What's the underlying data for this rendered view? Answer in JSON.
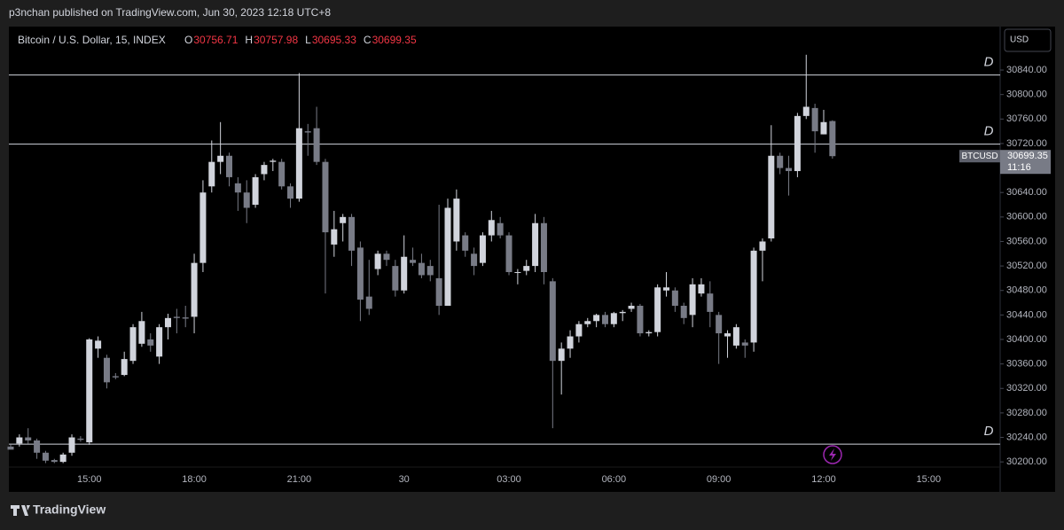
{
  "header": "p3nchan published on TradingView.com, Jun 30, 2023 12:18 UTC+8",
  "footer": "TradingView",
  "chart_data": {
    "type": "candlestick",
    "title": "Bitcoin / U.S. Dollar, 15, INDEX",
    "ohlc_labels": [
      "O",
      "H",
      "L",
      "C"
    ],
    "currency": "USD",
    "symbol_tag": "BTCUSD",
    "countdown": "11:16",
    "up_color": "#d1d4dc",
    "down_color": "#787b86",
    "categories": [
      null,
      null,
      null,
      null,
      null,
      null,
      null,
      null,
      null,
      "15:00",
      null,
      null,
      null,
      null,
      null,
      null,
      null,
      null,
      null,
      null,
      null,
      "18:00",
      null,
      null,
      null,
      null,
      null,
      null,
      null,
      null,
      null,
      null,
      null,
      "21:00",
      null,
      null,
      null,
      null,
      null,
      null,
      null,
      null,
      null,
      null,
      null,
      "30",
      null,
      null,
      null,
      null,
      null,
      null,
      null,
      null,
      null,
      null,
      null,
      "03:00",
      null,
      null,
      null,
      null,
      null,
      null,
      null,
      null,
      null,
      null,
      null,
      "06:00",
      null,
      null,
      null,
      null,
      null,
      null,
      null,
      null,
      null,
      null,
      null,
      "09:00",
      null,
      null,
      null,
      null,
      null,
      null,
      null,
      null,
      null,
      null,
      null,
      "12:00",
      null,
      null,
      null,
      null,
      null,
      null,
      null,
      null,
      null,
      null,
      null,
      "15:00",
      null,
      null,
      null,
      null,
      null,
      null,
      null,
      null
    ],
    "open": [
      30225,
      30230,
      30240,
      30235,
      30215,
      30203,
      30200,
      30215,
      30238,
      30232,
      30385,
      30370,
      30340,
      30342,
      30365,
      30393,
      30400,
      30372,
      30420,
      30437,
      30436,
      30437,
      30525,
      30650,
      30690,
      30700,
      30655,
      30640,
      30620,
      30670,
      30690,
      30690,
      30650,
      30630,
      30740,
      30745,
      30690,
      30555,
      30590,
      30600,
      30550,
      30470,
      30515,
      30540,
      30520,
      30480,
      30530,
      30525,
      30520,
      30500,
      30455,
      30560,
      30570,
      30540,
      30525,
      30570,
      30590,
      30570,
      30510,
      30512,
      30520,
      30590,
      30495,
      30365,
      30385,
      30405,
      30425,
      30430,
      30440,
      30425,
      30443,
      30450,
      30455,
      30410,
      30412,
      30480,
      30480,
      30455,
      30440,
      30475,
      30475,
      30440,
      30405,
      30390,
      30395,
      30395,
      30545,
      30565,
      30700,
      30680,
      30675,
      30765,
      30778,
      30735,
      30756.71,
      null,
      null,
      null,
      null,
      null,
      null,
      null,
      null,
      null,
      null,
      null,
      null,
      null,
      null,
      null,
      null,
      null,
      null,
      null
    ],
    "high": [
      30228,
      30245,
      30255,
      30238,
      30218,
      30205,
      30215,
      30245,
      30242,
      30402,
      30405,
      30375,
      30345,
      30380,
      30425,
      30445,
      30410,
      30425,
      30442,
      30450,
      30455,
      30540,
      30660,
      30725,
      30755,
      30705,
      30665,
      30660,
      30670,
      30690,
      30695,
      30695,
      30655,
      30835,
      30752,
      30780,
      30695,
      30610,
      30605,
      30605,
      30560,
      30530,
      30545,
      30545,
      30530,
      30570,
      30550,
      30540,
      30530,
      30620,
      30630,
      30645,
      30575,
      30550,
      30575,
      30610,
      30600,
      30575,
      30515,
      30530,
      30605,
      30600,
      30500,
      30395,
      30415,
      30430,
      30435,
      30442,
      30445,
      30445,
      30448,
      30460,
      30458,
      30415,
      30490,
      30510,
      30485,
      30460,
      30500,
      30500,
      30495,
      30445,
      30415,
      30425,
      30400,
      30550,
      30565,
      30750,
      30705,
      30700,
      30770,
      30865,
      30785,
      30775,
      30757.98,
      null,
      null,
      null,
      null,
      null,
      null,
      null,
      null,
      null,
      null,
      null,
      null,
      null,
      null,
      null,
      null,
      null,
      null,
      null
    ],
    "low": [
      30222,
      30225,
      30230,
      30205,
      30198,
      30198,
      30198,
      30210,
      30233,
      30228,
      30370,
      30320,
      30335,
      30340,
      30360,
      30388,
      30380,
      30360,
      30400,
      30410,
      30420,
      30410,
      30510,
      30640,
      30670,
      30650,
      30610,
      30590,
      30615,
      30660,
      30675,
      30645,
      30615,
      30625,
      30700,
      30685,
      30475,
      30535,
      30560,
      30520,
      30430,
      30440,
      30505,
      30520,
      30470,
      30475,
      30520,
      30500,
      30495,
      30440,
      30455,
      30545,
      30535,
      30505,
      30520,
      30560,
      30565,
      30505,
      30490,
      30505,
      30510,
      30490,
      30255,
      30310,
      30370,
      30395,
      30420,
      30420,
      30420,
      30420,
      30430,
      30445,
      30405,
      30405,
      30405,
      30470,
      30445,
      30425,
      30420,
      30470,
      30420,
      30360,
      30370,
      30385,
      30370,
      30380,
      30495,
      30560,
      30670,
      30635,
      30665,
      30760,
      30705,
      30735,
      30695.33,
      null,
      null,
      null,
      null,
      null,
      null,
      null,
      null,
      null,
      null,
      null,
      null,
      null,
      null,
      null,
      null,
      null,
      null,
      null
    ],
    "close": [
      30220,
      30240,
      30235,
      30215,
      30202,
      30200,
      30212,
      30240,
      30236,
      30400,
      30398,
      30330,
      30338,
      30368,
      30420,
      30430,
      30390,
      30420,
      30435,
      30435,
      30434,
      30525,
      30640,
      30690,
      30700,
      30665,
      30640,
      30615,
      30665,
      30685,
      30692,
      30650,
      30630,
      30745,
      30738,
      30690,
      30575,
      30580,
      30600,
      30545,
      30465,
      30450,
      30540,
      30530,
      30480,
      30535,
      30525,
      30505,
      30505,
      30455,
      30615,
      30630,
      30545,
      30520,
      30570,
      30595,
      30570,
      30510,
      30510,
      30520,
      30590,
      30510,
      30365,
      30385,
      30405,
      30425,
      30430,
      30440,
      30425,
      30443,
      30445,
      30455,
      30410,
      30412,
      30485,
      30485,
      30455,
      30435,
      30490,
      30490,
      30445,
      30410,
      30410,
      30420,
      30390,
      30545,
      30560,
      30700,
      30680,
      30675,
      30765,
      30780,
      30740,
      30755,
      30699.35,
      null,
      null,
      null,
      null,
      null,
      null,
      null,
      null,
      null,
      null,
      null,
      null,
      null,
      null,
      null,
      null,
      null,
      null,
      null
    ],
    "levels": [
      {
        "value": 30832,
        "label": "D"
      },
      {
        "value": 30719,
        "label": "D"
      },
      {
        "value": 30229,
        "label": "D"
      }
    ],
    "ylim": [
      30151,
      30911
    ],
    "yticks": [
      {
        "value": 30200,
        "label": "30200.00"
      },
      {
        "value": 30240,
        "label": "30240.00"
      },
      {
        "value": 30280,
        "label": "30280.00"
      },
      {
        "value": 30320,
        "label": "30320.00"
      },
      {
        "value": 30360,
        "label": "30360.00"
      },
      {
        "value": 30400,
        "label": "30400.00"
      },
      {
        "value": 30440,
        "label": "30440.00"
      },
      {
        "value": 30480,
        "label": "30480.00"
      },
      {
        "value": 30520,
        "label": "30520.00"
      },
      {
        "value": 30560,
        "label": "30560.00"
      },
      {
        "value": 30600,
        "label": "30600.00"
      },
      {
        "value": 30640,
        "label": "30640.00"
      },
      {
        "value": 30680,
        "label": "30680.00"
      },
      {
        "value": 30720,
        "label": "30720.00"
      },
      {
        "value": 30760,
        "label": "30760.00"
      },
      {
        "value": 30800,
        "label": "30800.00"
      },
      {
        "value": 30840,
        "label": "30840.00"
      }
    ]
  }
}
